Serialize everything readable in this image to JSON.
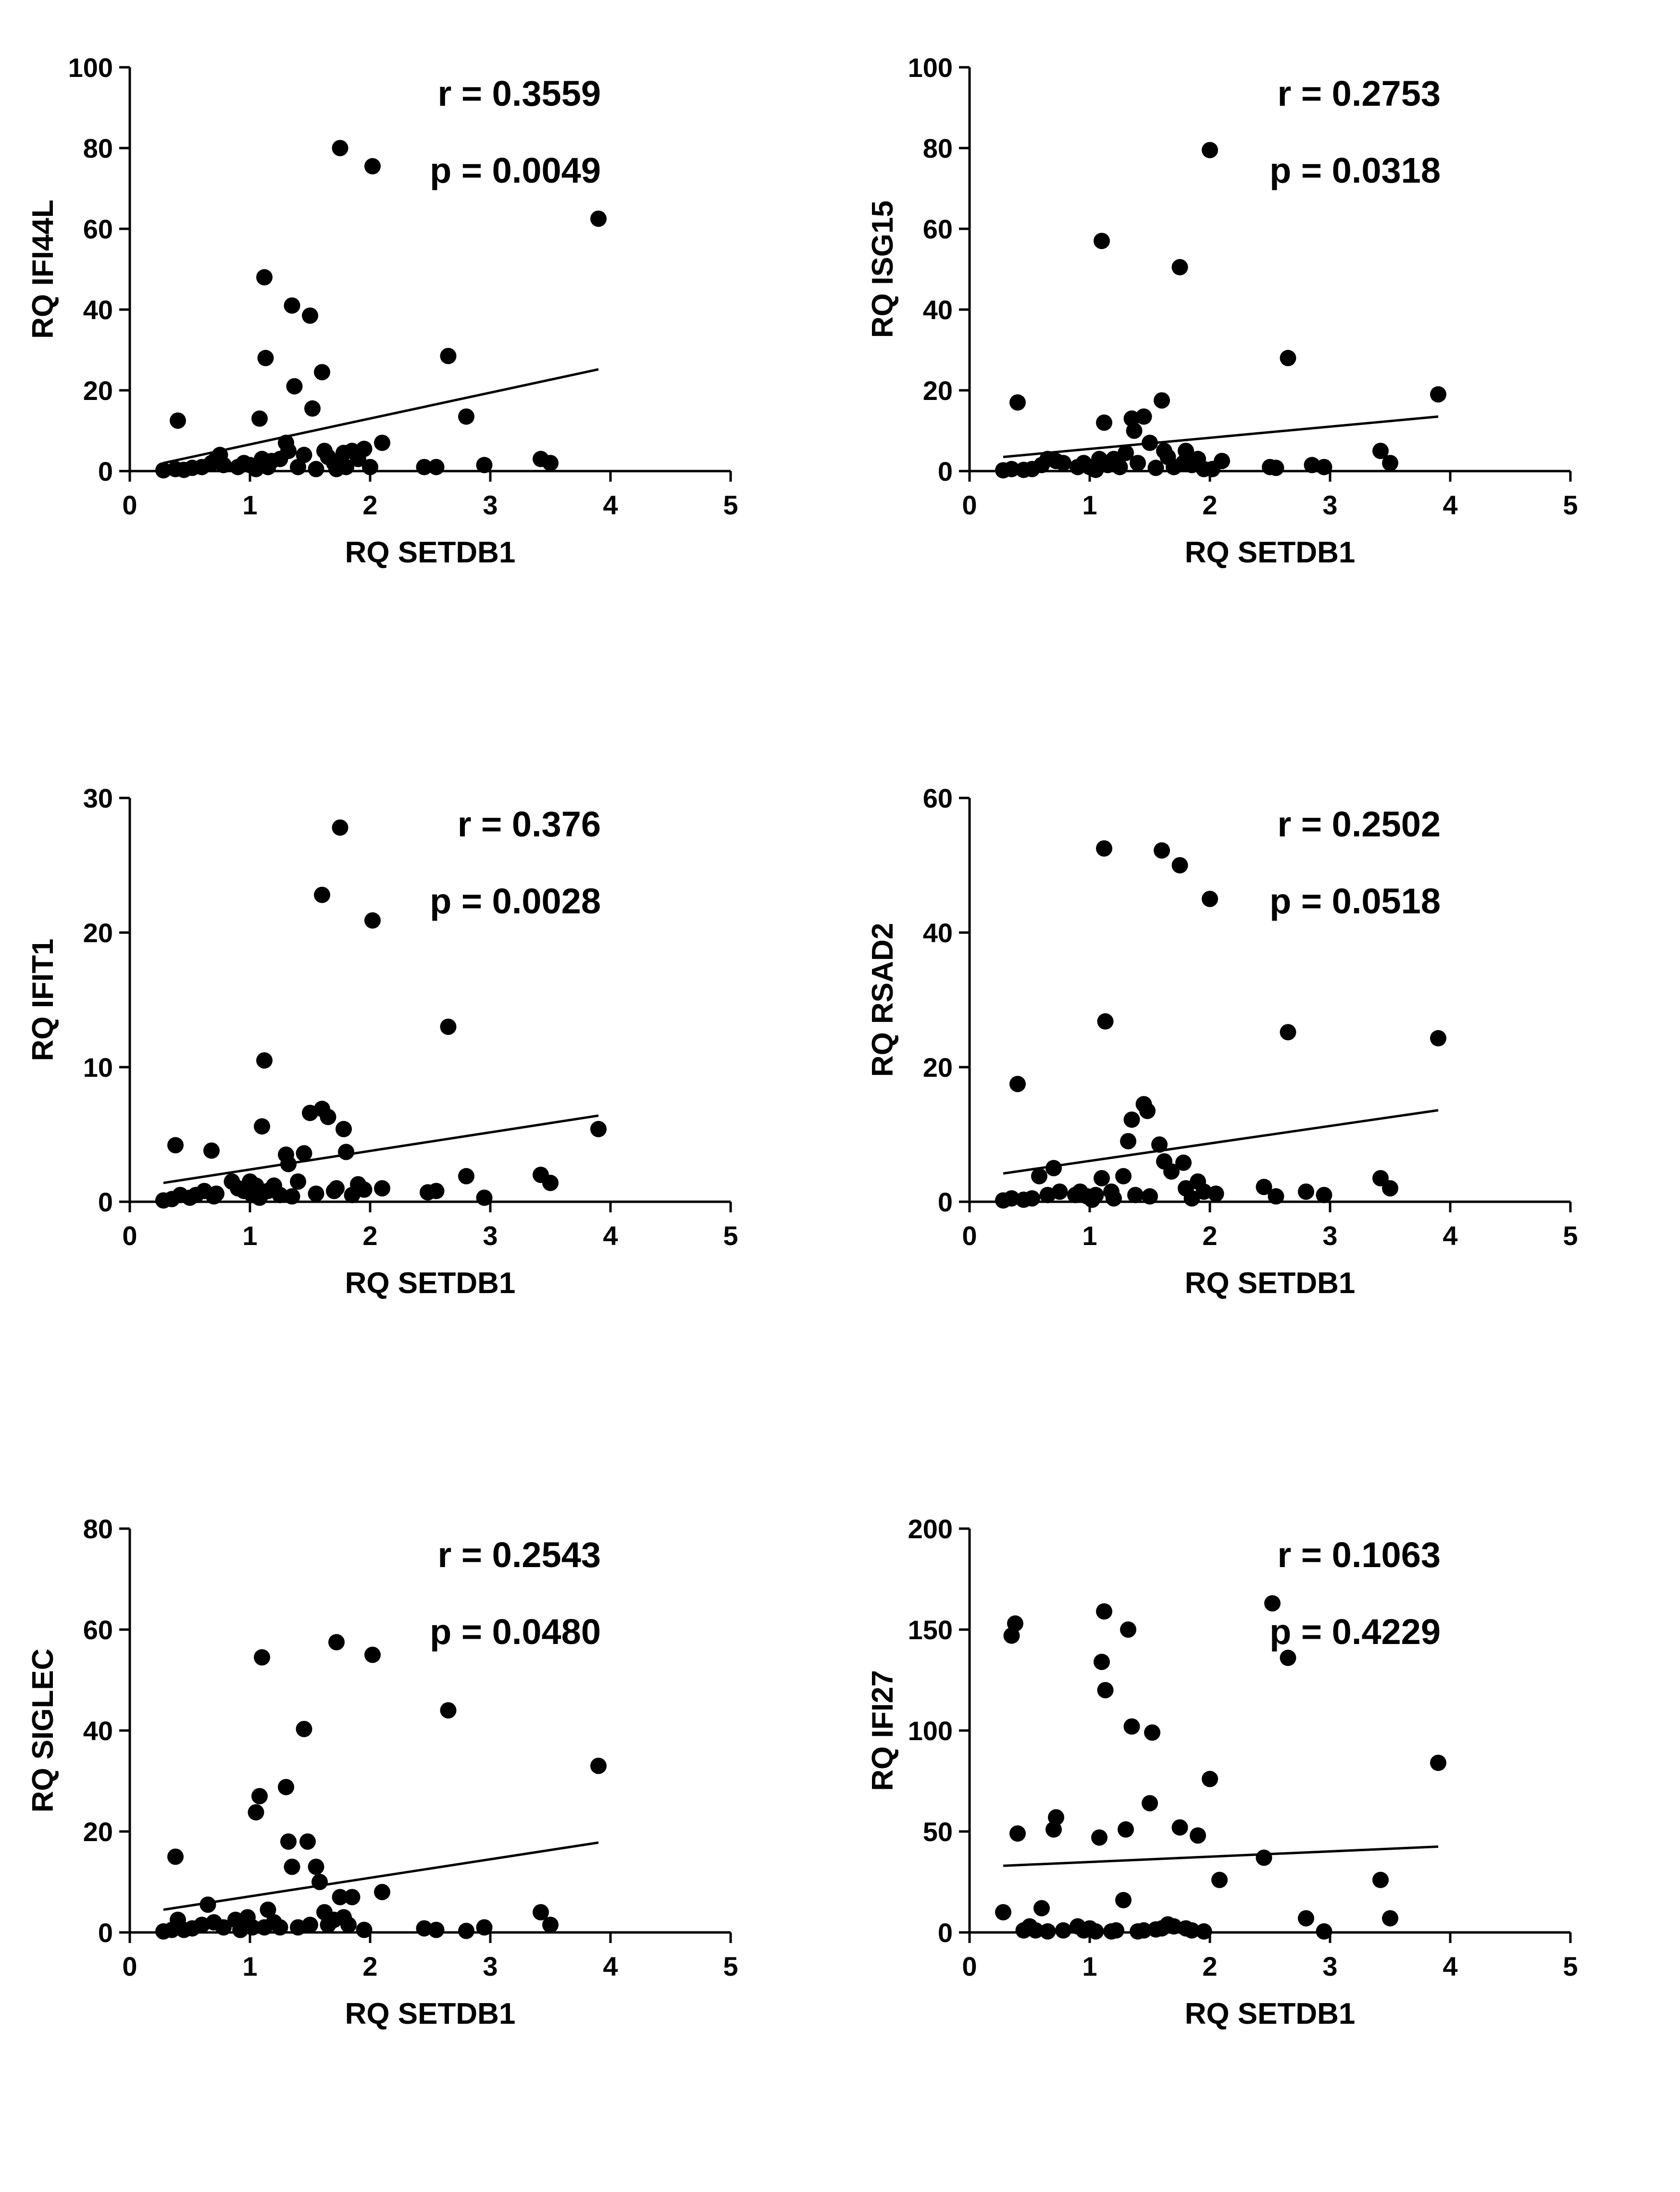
{
  "chart_data": [
    {
      "type": "scatter",
      "id": "ifi44l",
      "xlabel": "RQ SETDB1",
      "ylabel": "RQ IFI44L",
      "xlim": [
        0,
        5
      ],
      "ylim": [
        0,
        100
      ],
      "xticks": [
        0,
        1,
        2,
        3,
        4,
        5
      ],
      "yticks": [
        0,
        20,
        40,
        60,
        80,
        100
      ],
      "annotations": {
        "r": "r = 0.3559",
        "p": "p = 0.0049"
      },
      "regression": {
        "x": [
          0.28,
          3.9
        ],
        "y": [
          2.0,
          25.2
        ]
      },
      "points": [
        [
          0.28,
          0.2
        ],
        [
          0.38,
          0.5
        ],
        [
          0.4,
          12.5
        ],
        [
          0.45,
          0.3
        ],
        [
          0.52,
          0.8
        ],
        [
          0.6,
          1.0
        ],
        [
          0.68,
          2.0
        ],
        [
          0.72,
          3.0
        ],
        [
          0.75,
          4.0
        ],
        [
          0.78,
          1.5
        ],
        [
          0.9,
          1.0
        ],
        [
          0.95,
          2.0
        ],
        [
          1.0,
          1.5
        ],
        [
          1.05,
          0.5
        ],
        [
          1.08,
          13.0
        ],
        [
          1.1,
          3.0
        ],
        [
          1.12,
          48.0
        ],
        [
          1.13,
          28.0
        ],
        [
          1.15,
          1.0
        ],
        [
          1.18,
          2.5
        ],
        [
          1.25,
          3.0
        ],
        [
          1.3,
          7.0
        ],
        [
          1.32,
          5.0
        ],
        [
          1.35,
          41.0
        ],
        [
          1.37,
          21.0
        ],
        [
          1.4,
          1.0
        ],
        [
          1.45,
          4.0
        ],
        [
          1.5,
          38.5
        ],
        [
          1.52,
          15.5
        ],
        [
          1.55,
          0.5
        ],
        [
          1.6,
          24.5
        ],
        [
          1.62,
          5.0
        ],
        [
          1.65,
          3.5
        ],
        [
          1.7,
          2.0
        ],
        [
          1.72,
          0.5
        ],
        [
          1.75,
          80.0
        ],
        [
          1.78,
          4.5
        ],
        [
          1.8,
          1.0
        ],
        [
          1.85,
          5.0
        ],
        [
          1.9,
          3.0
        ],
        [
          1.95,
          5.5
        ],
        [
          2.0,
          1.0
        ],
        [
          2.02,
          75.5
        ],
        [
          2.1,
          7.0
        ],
        [
          2.45,
          1.0
        ],
        [
          2.55,
          1.0
        ],
        [
          2.65,
          28.5
        ],
        [
          2.8,
          13.5
        ],
        [
          2.95,
          1.5
        ],
        [
          3.42,
          3.0
        ],
        [
          3.5,
          2.0
        ],
        [
          3.9,
          62.5
        ]
      ]
    },
    {
      "type": "scatter",
      "id": "isg15",
      "xlabel": "RQ SETDB1",
      "ylabel": "RQ ISG15",
      "xlim": [
        0,
        5
      ],
      "ylim": [
        0,
        100
      ],
      "xticks": [
        0,
        1,
        2,
        3,
        4,
        5
      ],
      "yticks": [
        0,
        20,
        40,
        60,
        80,
        100
      ],
      "annotations": {
        "r": "r = 0.2753",
        "p": "p = 0.0318"
      },
      "regression": {
        "x": [
          0.28,
          3.9
        ],
        "y": [
          3.5,
          13.5
        ]
      },
      "points": [
        [
          0.28,
          0.2
        ],
        [
          0.35,
          0.5
        ],
        [
          0.4,
          17.0
        ],
        [
          0.45,
          0.3
        ],
        [
          0.52,
          0.5
        ],
        [
          0.6,
          1.5
        ],
        [
          0.65,
          3.0
        ],
        [
          0.72,
          2.5
        ],
        [
          0.78,
          2.0
        ],
        [
          0.9,
          1.0
        ],
        [
          0.95,
          2.0
        ],
        [
          1.0,
          1.0
        ],
        [
          1.05,
          0.3
        ],
        [
          1.08,
          3.0
        ],
        [
          1.1,
          57.0
        ],
        [
          1.12,
          12.0
        ],
        [
          1.15,
          1.5
        ],
        [
          1.2,
          3.0
        ],
        [
          1.25,
          1.0
        ],
        [
          1.3,
          4.5
        ],
        [
          1.35,
          13.0
        ],
        [
          1.37,
          10.0
        ],
        [
          1.4,
          2.0
        ],
        [
          1.45,
          13.5
        ],
        [
          1.5,
          7.0
        ],
        [
          1.55,
          0.8
        ],
        [
          1.6,
          17.5
        ],
        [
          1.62,
          5.0
        ],
        [
          1.65,
          3.5
        ],
        [
          1.7,
          1.0
        ],
        [
          1.75,
          50.5
        ],
        [
          1.78,
          2.0
        ],
        [
          1.8,
          5.0
        ],
        [
          1.85,
          1.5
        ],
        [
          1.9,
          3.0
        ],
        [
          1.95,
          0.5
        ],
        [
          2.0,
          79.5
        ],
        [
          2.02,
          0.5
        ],
        [
          2.1,
          2.5
        ],
        [
          2.5,
          1.0
        ],
        [
          2.55,
          0.8
        ],
        [
          2.65,
          28.0
        ],
        [
          2.85,
          1.5
        ],
        [
          2.95,
          1.0
        ],
        [
          3.42,
          5.0
        ],
        [
          3.5,
          2.0
        ],
        [
          3.9,
          19.0
        ]
      ]
    },
    {
      "type": "scatter",
      "id": "ifit1",
      "xlabel": "RQ SETDB1",
      "ylabel": "RQ IFIT1",
      "xlim": [
        0,
        5
      ],
      "ylim": [
        0,
        30
      ],
      "xticks": [
        0,
        1,
        2,
        3,
        4,
        5
      ],
      "yticks": [
        0,
        10,
        20,
        30
      ],
      "annotations": {
        "r": "r = 0.376",
        "p": "p = 0.0028"
      },
      "regression": {
        "x": [
          0.28,
          3.9
        ],
        "y": [
          1.4,
          6.4
        ]
      },
      "points": [
        [
          0.28,
          0.1
        ],
        [
          0.35,
          0.2
        ],
        [
          0.38,
          4.2
        ],
        [
          0.42,
          0.5
        ],
        [
          0.5,
          0.3
        ],
        [
          0.55,
          0.5
        ],
        [
          0.62,
          0.8
        ],
        [
          0.68,
          3.8
        ],
        [
          0.7,
          0.4
        ],
        [
          0.72,
          0.6
        ],
        [
          0.85,
          1.5
        ],
        [
          0.9,
          1.0
        ],
        [
          0.95,
          0.8
        ],
        [
          1.0,
          1.5
        ],
        [
          1.02,
          0.5
        ],
        [
          1.05,
          1.2
        ],
        [
          1.08,
          0.3
        ],
        [
          1.1,
          5.6
        ],
        [
          1.12,
          10.5
        ],
        [
          1.15,
          0.8
        ],
        [
          1.2,
          1.2
        ],
        [
          1.25,
          0.5
        ],
        [
          1.3,
          3.5
        ],
        [
          1.32,
          2.8
        ],
        [
          1.35,
          0.4
        ],
        [
          1.4,
          1.5
        ],
        [
          1.45,
          3.6
        ],
        [
          1.5,
          6.6
        ],
        [
          1.55,
          0.6
        ],
        [
          1.6,
          6.9
        ],
        [
          1.6,
          22.8
        ],
        [
          1.65,
          6.3
        ],
        [
          1.7,
          0.8
        ],
        [
          1.72,
          1.0
        ],
        [
          1.75,
          27.8
        ],
        [
          1.78,
          5.4
        ],
        [
          1.8,
          3.7
        ],
        [
          1.85,
          0.5
        ],
        [
          1.9,
          1.3
        ],
        [
          1.95,
          0.9
        ],
        [
          2.02,
          20.9
        ],
        [
          2.1,
          1.0
        ],
        [
          2.48,
          0.7
        ],
        [
          2.55,
          0.8
        ],
        [
          2.65,
          13.0
        ],
        [
          2.8,
          1.9
        ],
        [
          2.95,
          0.3
        ],
        [
          3.42,
          2.0
        ],
        [
          3.5,
          1.4
        ],
        [
          3.9,
          5.4
        ]
      ]
    },
    {
      "type": "scatter",
      "id": "rsad2",
      "xlabel": "RQ SETDB1",
      "ylabel": "RQ RSAD2",
      "xlim": [
        0,
        5
      ],
      "ylim": [
        0,
        60
      ],
      "xticks": [
        0,
        1,
        2,
        3,
        4,
        5
      ],
      "yticks": [
        0,
        20,
        40,
        60
      ],
      "annotations": {
        "r": "r = 0.2502",
        "p": "p = 0.0518"
      },
      "regression": {
        "x": [
          0.28,
          3.9
        ],
        "y": [
          4.2,
          13.6
        ]
      },
      "points": [
        [
          0.28,
          0.2
        ],
        [
          0.35,
          0.5
        ],
        [
          0.4,
          17.5
        ],
        [
          0.45,
          0.3
        ],
        [
          0.52,
          0.5
        ],
        [
          0.58,
          3.8
        ],
        [
          0.65,
          1.0
        ],
        [
          0.7,
          5.0
        ],
        [
          0.75,
          1.5
        ],
        [
          0.88,
          1.0
        ],
        [
          0.92,
          1.5
        ],
        [
          0.98,
          0.8
        ],
        [
          1.02,
          0.3
        ],
        [
          1.05,
          1.0
        ],
        [
          1.1,
          3.5
        ],
        [
          1.12,
          52.5
        ],
        [
          1.13,
          26.8
        ],
        [
          1.18,
          1.5
        ],
        [
          1.2,
          0.5
        ],
        [
          1.28,
          3.8
        ],
        [
          1.32,
          9.0
        ],
        [
          1.35,
          12.2
        ],
        [
          1.38,
          1.0
        ],
        [
          1.45,
          14.5
        ],
        [
          1.48,
          13.5
        ],
        [
          1.5,
          0.8
        ],
        [
          1.58,
          8.5
        ],
        [
          1.6,
          52.2
        ],
        [
          1.62,
          6.0
        ],
        [
          1.68,
          4.5
        ],
        [
          1.75,
          50.0
        ],
        [
          1.78,
          5.8
        ],
        [
          1.8,
          2.0
        ],
        [
          1.85,
          0.5
        ],
        [
          1.9,
          3.0
        ],
        [
          1.95,
          1.5
        ],
        [
          2.0,
          45.0
        ],
        [
          2.05,
          1.2
        ],
        [
          2.45,
          2.2
        ],
        [
          2.55,
          0.8
        ],
        [
          2.65,
          25.2
        ],
        [
          2.8,
          1.5
        ],
        [
          2.95,
          1.0
        ],
        [
          3.42,
          3.5
        ],
        [
          3.5,
          2.0
        ],
        [
          3.9,
          24.3
        ]
      ]
    },
    {
      "type": "scatter",
      "id": "siglec",
      "xlabel": "RQ SETDB1",
      "ylabel": "RQ SIGLEC",
      "xlim": [
        0,
        5
      ],
      "ylim": [
        0,
        80
      ],
      "xticks": [
        0,
        1,
        2,
        3,
        4,
        5
      ],
      "yticks": [
        0,
        20,
        40,
        60,
        80
      ],
      "annotations": {
        "r": "r = 0.2543",
        "p": "p = 0.0480"
      },
      "regression": {
        "x": [
          0.28,
          3.9
        ],
        "y": [
          4.5,
          17.8
        ]
      },
      "points": [
        [
          0.28,
          0.2
        ],
        [
          0.35,
          0.5
        ],
        [
          0.38,
          15.0
        ],
        [
          0.4,
          2.5
        ],
        [
          0.45,
          0.5
        ],
        [
          0.52,
          0.8
        ],
        [
          0.6,
          1.5
        ],
        [
          0.65,
          5.5
        ],
        [
          0.7,
          2.0
        ],
        [
          0.78,
          1.0
        ],
        [
          0.88,
          2.5
        ],
        [
          0.92,
          0.5
        ],
        [
          0.98,
          3.0
        ],
        [
          1.02,
          1.0
        ],
        [
          1.05,
          23.8
        ],
        [
          1.08,
          27.0
        ],
        [
          1.1,
          54.5
        ],
        [
          1.12,
          1.0
        ],
        [
          1.15,
          4.5
        ],
        [
          1.2,
          2.0
        ],
        [
          1.25,
          1.0
        ],
        [
          1.3,
          28.8
        ],
        [
          1.32,
          18.0
        ],
        [
          1.35,
          13.0
        ],
        [
          1.4,
          1.0
        ],
        [
          1.45,
          40.3
        ],
        [
          1.48,
          18.0
        ],
        [
          1.5,
          1.5
        ],
        [
          1.55,
          13.0
        ],
        [
          1.58,
          10.0
        ],
        [
          1.62,
          4.0
        ],
        [
          1.65,
          1.5
        ],
        [
          1.7,
          2.5
        ],
        [
          1.72,
          57.5
        ],
        [
          1.75,
          7.0
        ],
        [
          1.78,
          3.0
        ],
        [
          1.82,
          1.5
        ],
        [
          1.85,
          7.0
        ],
        [
          1.95,
          0.5
        ],
        [
          2.02,
          55.0
        ],
        [
          2.1,
          8.0
        ],
        [
          2.45,
          0.8
        ],
        [
          2.55,
          0.5
        ],
        [
          2.65,
          44.0
        ],
        [
          2.8,
          0.3
        ],
        [
          2.95,
          1.0
        ],
        [
          3.42,
          4.0
        ],
        [
          3.5,
          1.5
        ],
        [
          3.9,
          33.0
        ]
      ]
    },
    {
      "type": "scatter",
      "id": "ifi27",
      "xlabel": "RQ SETDB1",
      "ylabel": "RQ IFI27",
      "xlim": [
        0,
        5
      ],
      "ylim": [
        0,
        200
      ],
      "xticks": [
        0,
        1,
        2,
        3,
        4,
        5
      ],
      "yticks": [
        0,
        50,
        100,
        150,
        200
      ],
      "annotations": {
        "r": "r = 0.1063",
        "p": "p = 0.4229"
      },
      "regression": {
        "x": [
          0.28,
          3.9
        ],
        "y": [
          33.0,
          42.5
        ]
      },
      "points": [
        [
          0.28,
          10.0
        ],
        [
          0.35,
          147.0
        ],
        [
          0.38,
          153.0
        ],
        [
          0.4,
          49.0
        ],
        [
          0.45,
          1.0
        ],
        [
          0.5,
          3.0
        ],
        [
          0.55,
          1.0
        ],
        [
          0.6,
          12.0
        ],
        [
          0.65,
          0.5
        ],
        [
          0.7,
          51.0
        ],
        [
          0.72,
          57.0
        ],
        [
          0.78,
          1.0
        ],
        [
          0.9,
          3.0
        ],
        [
          0.95,
          1.0
        ],
        [
          1.0,
          2.0
        ],
        [
          1.05,
          0.5
        ],
        [
          1.08,
          47.0
        ],
        [
          1.1,
          134.0
        ],
        [
          1.12,
          159.0
        ],
        [
          1.13,
          120.0
        ],
        [
          1.18,
          0.5
        ],
        [
          1.22,
          1.0
        ],
        [
          1.28,
          16.0
        ],
        [
          1.3,
          51.0
        ],
        [
          1.32,
          150.0
        ],
        [
          1.35,
          102.0
        ],
        [
          1.4,
          0.5
        ],
        [
          1.45,
          1.0
        ],
        [
          1.5,
          64.0
        ],
        [
          1.52,
          99.0
        ],
        [
          1.55,
          1.5
        ],
        [
          1.6,
          2.0
        ],
        [
          1.65,
          4.0
        ],
        [
          1.7,
          3.0
        ],
        [
          1.75,
          52.0
        ],
        [
          1.8,
          2.0
        ],
        [
          1.85,
          1.0
        ],
        [
          1.9,
          48.0
        ],
        [
          1.95,
          0.5
        ],
        [
          2.0,
          76.0
        ],
        [
          2.08,
          26.0
        ],
        [
          2.45,
          37.0
        ],
        [
          2.52,
          163.0
        ],
        [
          2.65,
          136.0
        ],
        [
          2.8,
          7.0
        ],
        [
          2.95,
          0.5
        ],
        [
          3.42,
          26.0
        ],
        [
          3.5,
          7.0
        ],
        [
          3.9,
          84.0
        ]
      ]
    }
  ]
}
